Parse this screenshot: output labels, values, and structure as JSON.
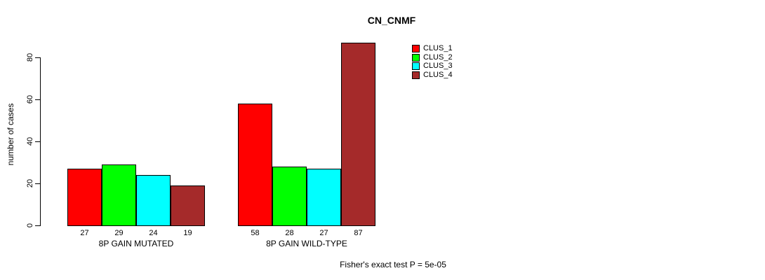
{
  "chart_data": {
    "type": "bar",
    "title": "CN_CNMF",
    "ylabel": "number of cases",
    "xlabel": "",
    "groups": [
      "8P GAIN MUTATED",
      "8P GAIN WILD-TYPE"
    ],
    "series": [
      {
        "name": "CLUS_1",
        "color": "#ff0000",
        "values": [
          27,
          58
        ]
      },
      {
        "name": "CLUS_2",
        "color": "#00ff00",
        "values": [
          29,
          28
        ]
      },
      {
        "name": "CLUS_3",
        "color": "#00ffff",
        "values": [
          24,
          27
        ]
      },
      {
        "name": "CLUS_4",
        "color": "#a52a2a",
        "values": [
          19,
          87
        ]
      }
    ],
    "bar_value_labels": [
      [
        27,
        29,
        24,
        19
      ],
      [
        58,
        28,
        27,
        87
      ]
    ],
    "yticks": [
      0,
      20,
      40,
      60,
      80
    ],
    "ylim": [
      0,
      87
    ],
    "grid": false,
    "legend_position": "top-right",
    "annotation": "Fisher's exact test P = 5e-05",
    "background_color": "#ffffff",
    "axis_color": "#000000"
  }
}
